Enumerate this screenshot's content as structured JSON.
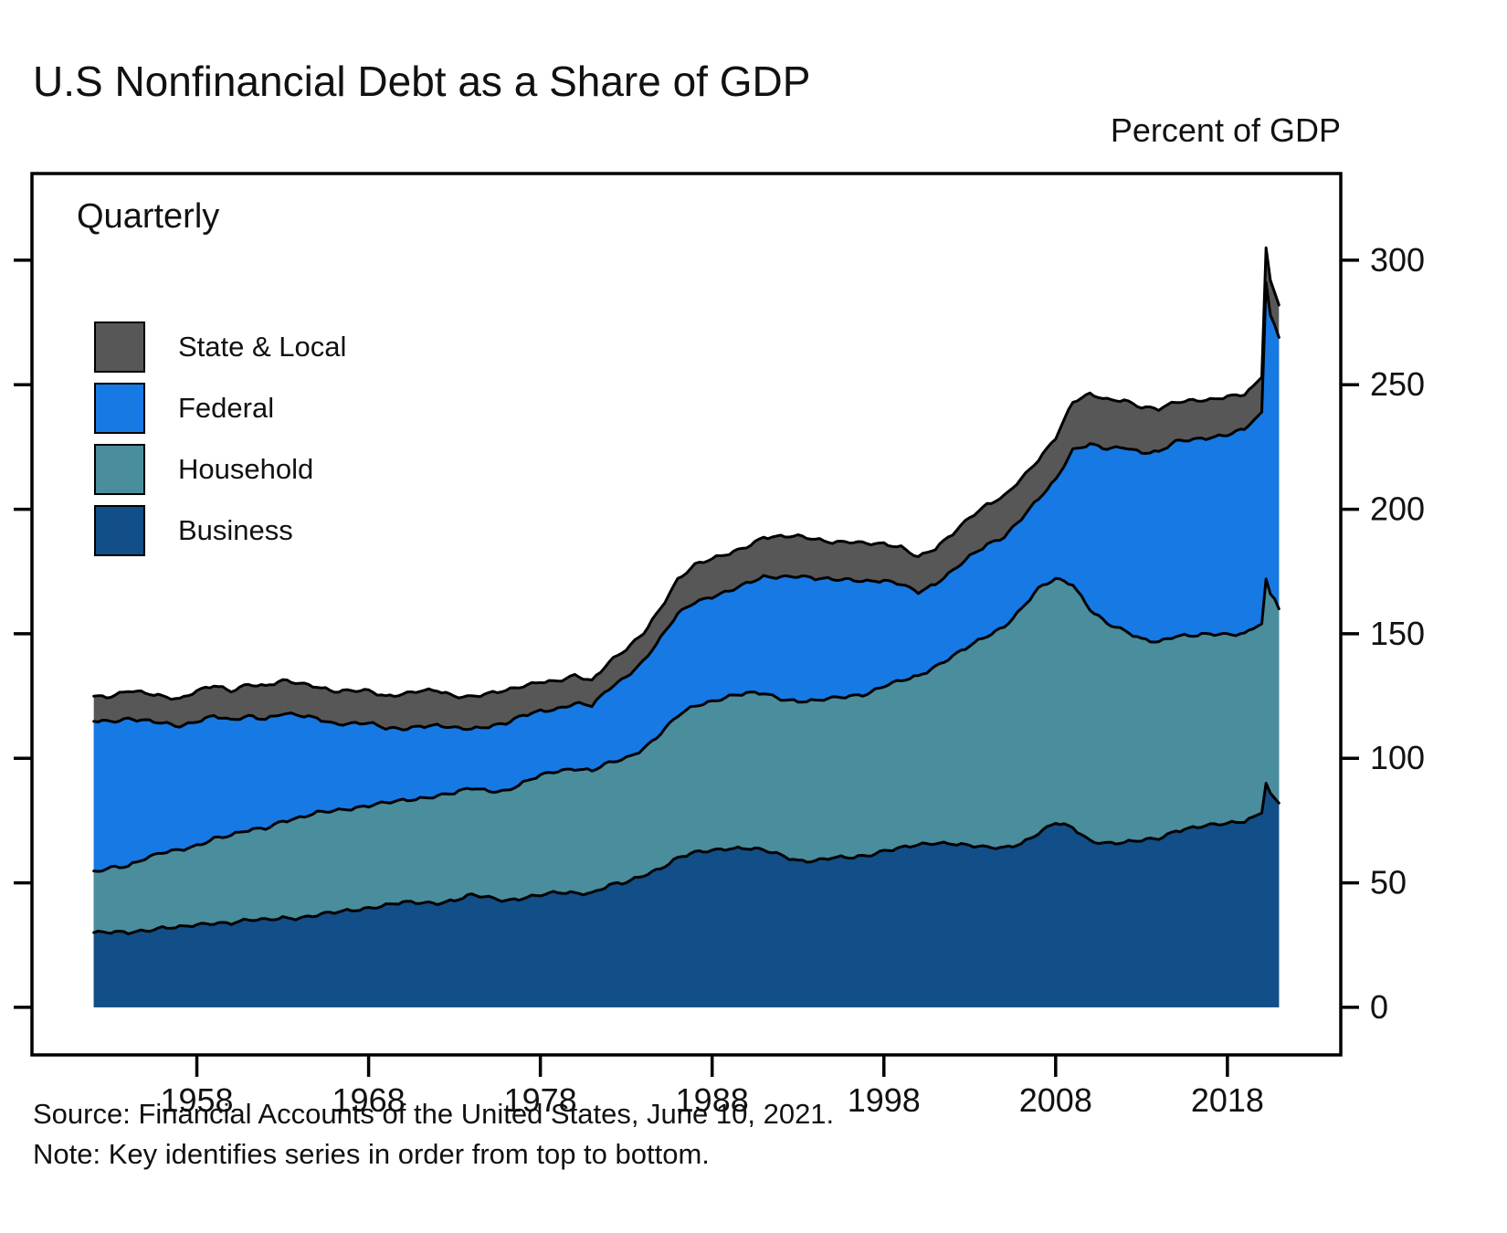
{
  "header": {
    "title": "U.S Nonfinancial Debt as a Share of GDP",
    "unit_label": "Percent of GDP"
  },
  "plot": {
    "frequency_label": "Quarterly"
  },
  "legend": {
    "note_order": "top to bottom",
    "items": [
      {
        "label": "State & Local",
        "color": "#575757"
      },
      {
        "label": "Federal",
        "color": "#1779e4"
      },
      {
        "label": "Household",
        "color": "#4a8d9c"
      },
      {
        "label": "Business",
        "color": "#124e87"
      }
    ]
  },
  "footer": {
    "source": "Source: Financial Accounts of the United States, June 10, 2021.",
    "note": "Note: Key identifies series in order from top to bottom."
  },
  "chart_data": {
    "type": "area",
    "stacked": true,
    "title": "U.S Nonfinancial Debt as a Share of GDP",
    "ylabel": "Percent of GDP",
    "frequency": "Quarterly",
    "xlim": [
      1948.4,
      2024.6
    ],
    "ylim": [
      -19.1,
      334.8
    ],
    "x_ticks": [
      1958,
      1968,
      1978,
      1988,
      1998,
      2008,
      2018
    ],
    "y_ticks": [
      0,
      50,
      100,
      150,
      200,
      250,
      300
    ],
    "legend_position": "upper-left",
    "grid": false,
    "x": [
      1952,
      1953,
      1954,
      1955,
      1956,
      1957,
      1958,
      1959,
      1960,
      1961,
      1962,
      1963,
      1964,
      1965,
      1966,
      1967,
      1968,
      1969,
      1970,
      1971,
      1972,
      1973,
      1974,
      1975,
      1976,
      1977,
      1978,
      1979,
      1980,
      1981,
      1982,
      1983,
      1984,
      1985,
      1986,
      1987,
      1988,
      1989,
      1990,
      1991,
      1992,
      1993,
      1994,
      1995,
      1996,
      1997,
      1998,
      1999,
      2000,
      2001,
      2002,
      2003,
      2004,
      2005,
      2006,
      2007,
      2008,
      2009,
      2010,
      2011,
      2012,
      2013,
      2014,
      2015,
      2016,
      2017,
      2018,
      2019,
      2020,
      2020.25,
      2020.5,
      2020.75,
      2021
    ],
    "series": [
      {
        "name": "Business",
        "color": "#124e87",
        "values": [
          30,
          30,
          30,
          31,
          32,
          32,
          33,
          34,
          34,
          35,
          35,
          36,
          36,
          37,
          38,
          39,
          40,
          41,
          42,
          42,
          42,
          43,
          45,
          44,
          43,
          44,
          45,
          46,
          46,
          46,
          49,
          50,
          53,
          56,
          60,
          62,
          63,
          64,
          64,
          63,
          61,
          59,
          59,
          60,
          60,
          61,
          63,
          64,
          65,
          66,
          66,
          65,
          64,
          64,
          66,
          70,
          74,
          72,
          67,
          66,
          66,
          67,
          68,
          71,
          72,
          73,
          74,
          75,
          78,
          90,
          86,
          84,
          82
        ]
      },
      {
        "name": "Household",
        "color": "#4a8d9c",
        "values": [
          24,
          26,
          27,
          29,
          30,
          31,
          32,
          34,
          35,
          36,
          37,
          39,
          40,
          41,
          41,
          41,
          41,
          41,
          41,
          42,
          43,
          43,
          43,
          43,
          44,
          46,
          48,
          49,
          50,
          49,
          49,
          50,
          51,
          54,
          57,
          59,
          60,
          61,
          62,
          63,
          63,
          64,
          64,
          64,
          65,
          65,
          66,
          67,
          68,
          71,
          75,
          80,
          85,
          89,
          94,
          98,
          98,
          98,
          93,
          88,
          85,
          81,
          79,
          78,
          77,
          77,
          76,
          75,
          76,
          82,
          80,
          80,
          78
        ]
      },
      {
        "name": "Federal",
        "color": "#1779e4",
        "values": [
          61,
          59,
          59,
          55,
          52,
          50,
          50,
          49,
          46,
          46,
          44,
          43,
          41,
          38,
          35,
          34,
          33,
          30,
          29,
          29,
          28,
          26,
          24,
          26,
          27,
          27,
          26,
          25,
          26,
          26,
          30,
          33,
          35,
          38,
          41,
          42,
          42,
          42,
          44,
          47,
          49,
          50,
          49,
          48,
          47,
          45,
          42,
          39,
          34,
          33,
          34,
          36,
          37,
          36,
          36,
          36,
          40,
          54,
          66,
          70,
          74,
          75,
          76,
          78,
          79,
          79,
          80,
          82,
          85,
          119,
          112,
          110,
          109
        ]
      },
      {
        "name": "State & Local",
        "color": "#575757",
        "values": [
          10,
          10,
          11,
          11,
          11,
          11,
          12,
          12,
          12,
          13,
          13,
          13,
          13,
          13,
          13,
          13,
          13,
          13,
          14,
          14,
          14,
          13,
          13,
          13,
          13,
          12,
          12,
          11,
          11,
          10,
          11,
          11,
          11,
          12,
          14,
          15,
          15,
          15,
          15,
          16,
          16,
          16,
          16,
          15,
          15,
          15,
          15,
          15,
          14,
          14,
          15,
          16,
          16,
          16,
          16,
          16,
          17,
          19,
          20,
          20,
          19,
          18,
          17,
          16,
          16,
          15,
          15,
          14,
          14,
          14,
          14,
          13,
          13
        ]
      }
    ],
    "series_order_note": "series listed bottom-to-top of stack; key shows top-to-bottom"
  }
}
